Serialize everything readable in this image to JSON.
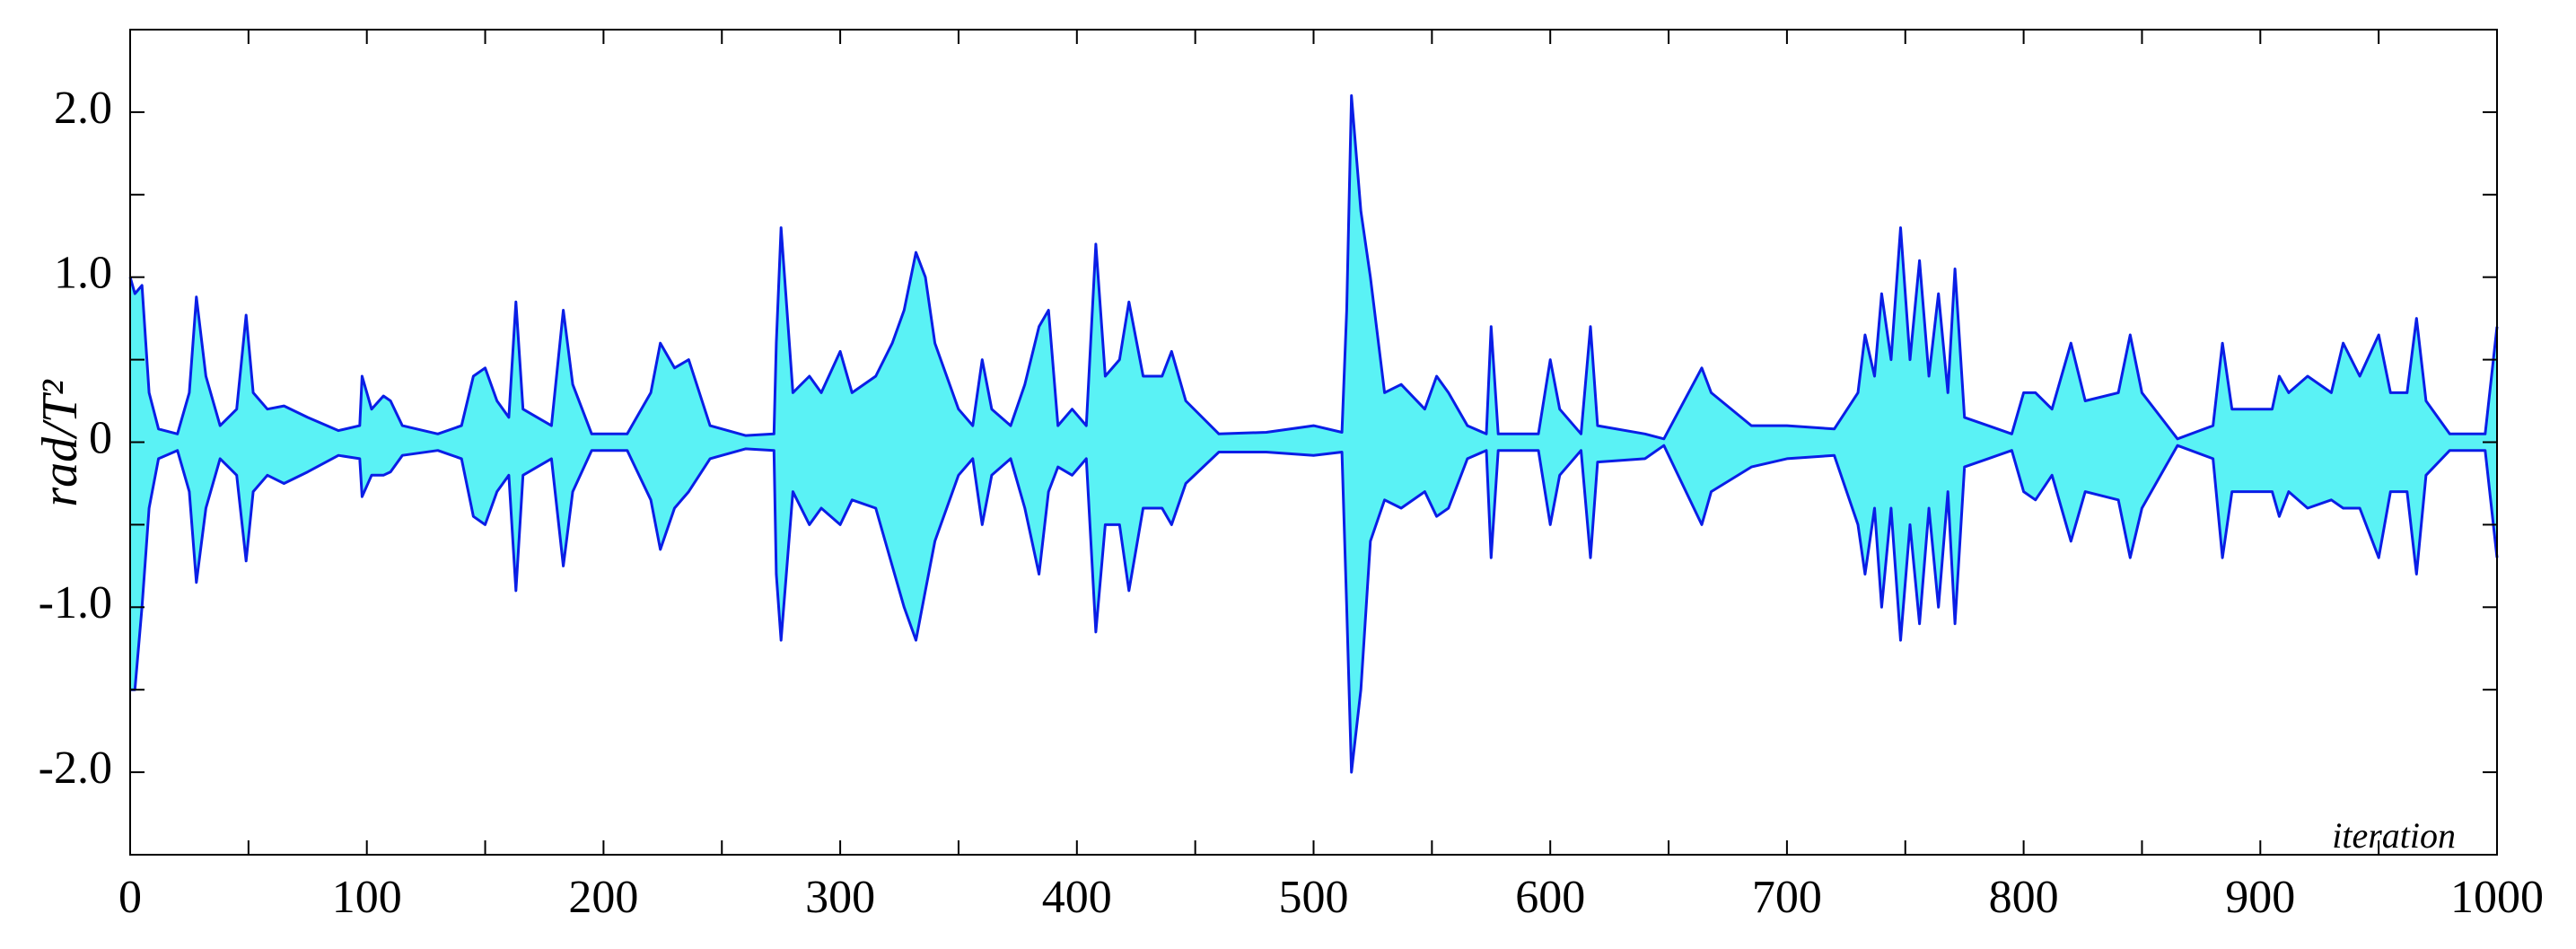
{
  "chart_data": {
    "type": "band",
    "ylabel": "rad/T²",
    "annotation": "iteration",
    "xlim": [
      0,
      1000
    ],
    "ylim": [
      -2.5,
      2.5
    ],
    "xticks": [
      0,
      100,
      200,
      300,
      400,
      500,
      600,
      700,
      800,
      900,
      1000
    ],
    "xminor_ticks": [
      50,
      150,
      250,
      350,
      450,
      550,
      650,
      750,
      850,
      950
    ],
    "yticks": [
      {
        "value": -2,
        "label": "-2.0"
      },
      {
        "value": -1,
        "label": "-1.0"
      },
      0,
      {
        "value": 1,
        "label": "1.0"
      },
      {
        "value": 2,
        "label": "2.0"
      }
    ],
    "yminor_ticks": [
      -1.5,
      -0.5,
      0.5,
      1.5
    ],
    "fill_color": "#5af2f5",
    "edge_color": "#0a1ee6",
    "x": [
      0,
      2,
      5,
      8,
      12,
      20,
      25,
      28,
      32,
      38,
      45,
      49,
      52,
      58,
      65,
      75,
      88,
      97,
      98,
      102,
      107,
      110,
      115,
      130,
      140,
      145,
      150,
      155,
      160,
      163,
      166,
      172,
      178,
      183,
      187,
      195,
      210,
      220,
      224,
      230,
      236,
      245,
      260,
      272,
      273,
      275,
      280,
      287,
      292,
      300,
      305,
      315,
      322,
      327,
      332,
      336,
      340,
      350,
      356,
      360,
      364,
      372,
      378,
      384,
      388,
      392,
      398,
      404,
      408,
      412,
      418,
      422,
      428,
      436,
      440,
      446,
      460,
      480,
      500,
      512,
      514,
      516,
      520,
      524,
      530,
      537,
      547,
      552,
      557,
      565,
      573,
      575,
      578,
      595,
      600,
      604,
      613,
      617,
      620,
      640,
      648,
      664,
      668,
      685,
      700,
      720,
      730,
      733,
      737,
      740,
      744,
      748,
      752,
      756,
      760,
      764,
      768,
      771,
      775,
      785,
      795,
      800,
      805,
      812,
      820,
      826,
      840,
      845,
      850,
      865,
      880,
      884,
      888,
      905,
      908,
      912,
      920,
      930,
      935,
      942,
      950,
      955,
      962,
      966,
      970,
      980,
      995,
      1000
    ],
    "upper": [
      1.0,
      0.9,
      0.95,
      0.3,
      0.08,
      0.05,
      0.3,
      0.88,
      0.4,
      0.1,
      0.2,
      0.77,
      0.3,
      0.2,
      0.22,
      0.15,
      0.07,
      0.1,
      0.4,
      0.2,
      0.28,
      0.25,
      0.1,
      0.05,
      0.1,
      0.4,
      0.45,
      0.25,
      0.15,
      0.85,
      0.2,
      0.15,
      0.1,
      0.8,
      0.35,
      0.05,
      0.05,
      0.3,
      0.6,
      0.45,
      0.5,
      0.1,
      0.04,
      0.05,
      0.6,
      1.3,
      0.3,
      0.4,
      0.3,
      0.55,
      0.3,
      0.4,
      0.6,
      0.8,
      1.15,
      1.0,
      0.6,
      0.2,
      0.1,
      0.5,
      0.2,
      0.1,
      0.35,
      0.7,
      0.8,
      0.1,
      0.2,
      0.1,
      1.2,
      0.4,
      0.5,
      0.85,
      0.4,
      0.4,
      0.55,
      0.25,
      0.05,
      0.06,
      0.1,
      0.06,
      0.8,
      2.1,
      1.4,
      1.0,
      0.3,
      0.35,
      0.2,
      0.4,
      0.3,
      0.1,
      0.05,
      0.7,
      0.05,
      0.05,
      0.5,
      0.2,
      0.05,
      0.7,
      0.1,
      0.05,
      0.02,
      0.45,
      0.3,
      0.1,
      0.1,
      0.08,
      0.3,
      0.65,
      0.4,
      0.9,
      0.5,
      1.3,
      0.5,
      1.1,
      0.4,
      0.9,
      0.3,
      1.05,
      0.15,
      0.1,
      0.05,
      0.3,
      0.3,
      0.2,
      0.6,
      0.25,
      0.3,
      0.65,
      0.3,
      0.02,
      0.1,
      0.6,
      0.2,
      0.2,
      0.4,
      0.3,
      0.4,
      0.3,
      0.6,
      0.4,
      0.65,
      0.3,
      0.3,
      0.75,
      0.25,
      0.05,
      0.05,
      0.7
    ],
    "lower": [
      -1.5,
      -1.5,
      -1.0,
      -0.4,
      -0.1,
      -0.05,
      -0.3,
      -0.85,
      -0.4,
      -0.1,
      -0.2,
      -0.72,
      -0.3,
      -0.2,
      -0.25,
      -0.18,
      -0.08,
      -0.1,
      -0.33,
      -0.2,
      -0.2,
      -0.18,
      -0.08,
      -0.05,
      -0.1,
      -0.45,
      -0.5,
      -0.3,
      -0.2,
      -0.9,
      -0.2,
      -0.15,
      -0.1,
      -0.75,
      -0.3,
      -0.05,
      -0.05,
      -0.35,
      -0.65,
      -0.4,
      -0.3,
      -0.1,
      -0.04,
      -0.05,
      -0.8,
      -1.2,
      -0.3,
      -0.5,
      -0.4,
      -0.5,
      -0.35,
      -0.4,
      -0.75,
      -1.0,
      -1.2,
      -0.9,
      -0.6,
      -0.2,
      -0.1,
      -0.5,
      -0.2,
      -0.1,
      -0.4,
      -0.8,
      -0.3,
      -0.15,
      -0.2,
      -0.1,
      -1.15,
      -0.5,
      -0.5,
      -0.9,
      -0.4,
      -0.4,
      -0.5,
      -0.25,
      -0.06,
      -0.06,
      -0.08,
      -0.06,
      -1.0,
      -2.0,
      -1.5,
      -0.6,
      -0.35,
      -0.4,
      -0.3,
      -0.45,
      -0.4,
      -0.1,
      -0.05,
      -0.7,
      -0.05,
      -0.05,
      -0.5,
      -0.2,
      -0.05,
      -0.7,
      -0.12,
      -0.1,
      -0.02,
      -0.5,
      -0.3,
      -0.15,
      -0.1,
      -0.08,
      -0.5,
      -0.8,
      -0.4,
      -1.0,
      -0.4,
      -1.2,
      -0.5,
      -1.1,
      -0.4,
      -1.0,
      -0.3,
      -1.1,
      -0.15,
      -0.1,
      -0.05,
      -0.3,
      -0.35,
      -0.2,
      -0.6,
      -0.3,
      -0.35,
      -0.7,
      -0.4,
      -0.02,
      -0.1,
      -0.7,
      -0.3,
      -0.3,
      -0.45,
      -0.3,
      -0.4,
      -0.35,
      -0.4,
      -0.4,
      -0.7,
      -0.3,
      -0.3,
      -0.8,
      -0.2,
      -0.05,
      -0.05,
      -0.7
    ]
  }
}
